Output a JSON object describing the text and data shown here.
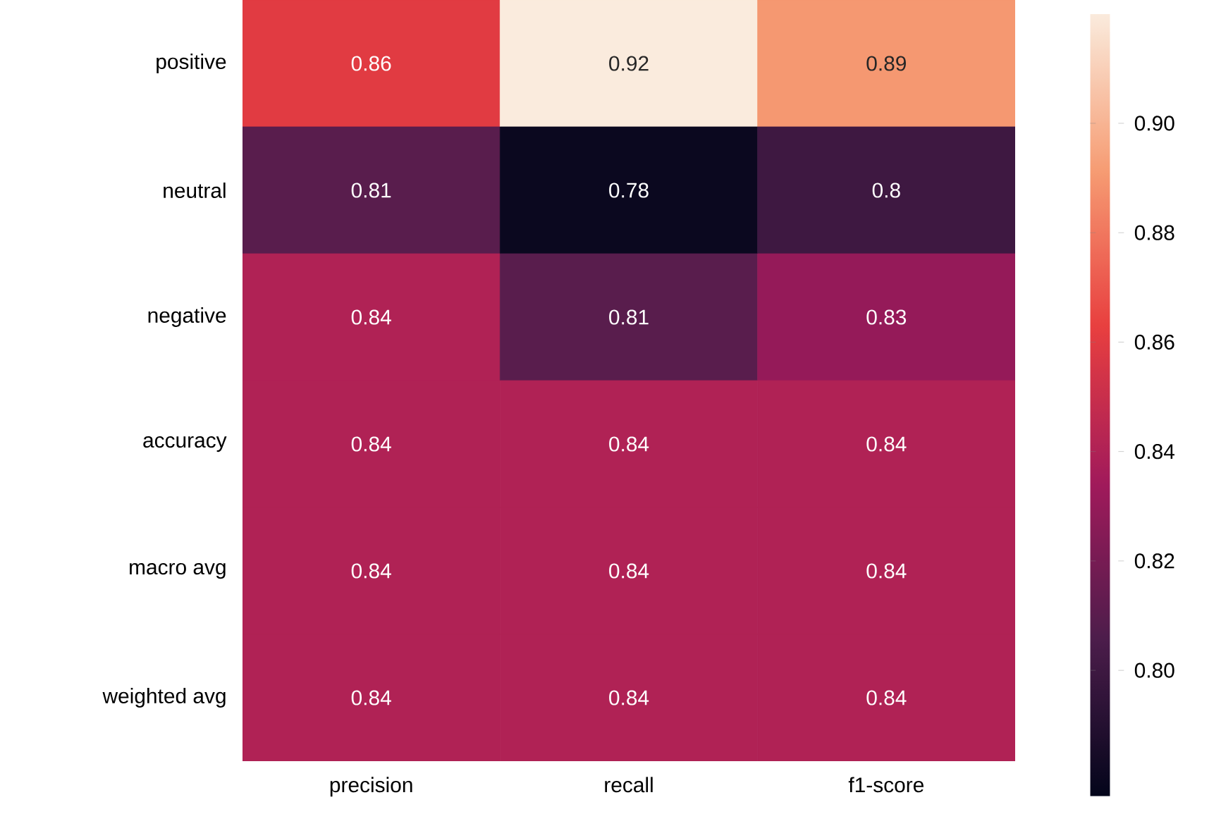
{
  "chart_data": {
    "type": "heatmap",
    "categories": [
      "precision",
      "recall",
      "f1-score"
    ],
    "y_categories": [
      "positive",
      "neutral",
      "negative",
      "accuracy",
      "macro avg",
      "weighted avg"
    ],
    "cells": [
      [
        0.86,
        0.92,
        0.89
      ],
      [
        0.81,
        0.78,
        0.8
      ],
      [
        0.84,
        0.81,
        0.83
      ],
      [
        0.84,
        0.84,
        0.84
      ],
      [
        0.84,
        0.84,
        0.84
      ],
      [
        0.84,
        0.84,
        0.84
      ]
    ],
    "data_labels": true,
    "clim": [
      0.777,
      0.92
    ],
    "cticks": [
      {
        "value": 0.8,
        "label": "0.80"
      },
      {
        "value": 0.82,
        "label": "0.82"
      },
      {
        "value": 0.84,
        "label": "0.84"
      },
      {
        "value": 0.86,
        "label": "0.86"
      },
      {
        "value": 0.88,
        "label": "0.88"
      },
      {
        "value": 0.9,
        "label": "0.90"
      }
    ]
  }
}
